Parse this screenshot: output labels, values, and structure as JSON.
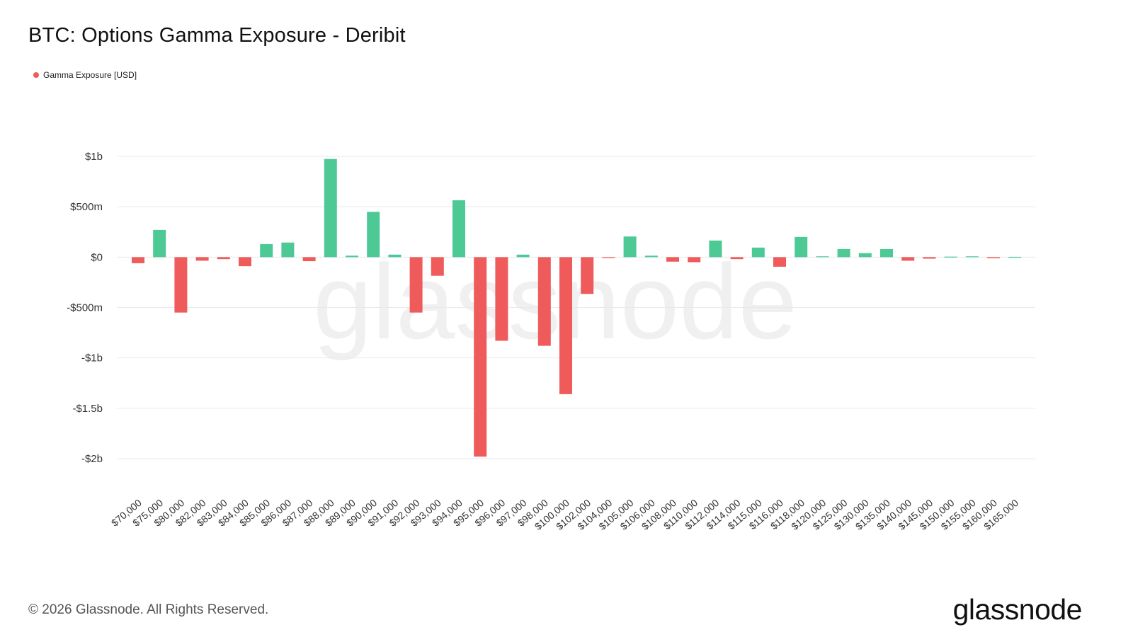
{
  "title": "BTC: Options Gamma Exposure - Deribit",
  "legend": {
    "label": "Gamma Exposure [USD]",
    "color": "#ef5b5b"
  },
  "footer": "© 2026 Glassnode. All Rights Reserved.",
  "logo": "glassnode",
  "watermark": "glassnode",
  "colors": {
    "positive": "#4cc994",
    "negative": "#ef5b5b",
    "grid": "#e9e9e9"
  },
  "chart_data": {
    "type": "bar",
    "ylim": [
      -2000000000,
      1000000000
    ],
    "grid": true,
    "legend_position": "top-left",
    "yticks": [
      {
        "value": 1000000000,
        "label": "$1b"
      },
      {
        "value": 500000000,
        "label": "$500m"
      },
      {
        "value": 0,
        "label": "$0"
      },
      {
        "value": -500000000,
        "label": "-$500m"
      },
      {
        "value": -1000000000,
        "label": "-$1b"
      },
      {
        "value": -1500000000,
        "label": "-$1.5b"
      },
      {
        "value": -2000000000,
        "label": "-$2b"
      }
    ],
    "categories": [
      "$70,000",
      "$75,000",
      "$80,000",
      "$82,000",
      "$83,000",
      "$84,000",
      "$85,000",
      "$86,000",
      "$87,000",
      "$88,000",
      "$89,000",
      "$90,000",
      "$91,000",
      "$92,000",
      "$93,000",
      "$94,000",
      "$95,000",
      "$96,000",
      "$97,000",
      "$98,000",
      "$100,000",
      "$102,000",
      "$104,000",
      "$105,000",
      "$106,000",
      "$108,000",
      "$110,000",
      "$112,000",
      "$114,000",
      "$115,000",
      "$116,000",
      "$118,000",
      "$120,000",
      "$125,000",
      "$130,000",
      "$135,000",
      "$140,000",
      "$145,000",
      "$150,000",
      "$155,000",
      "$160,000",
      "$165,000"
    ],
    "series": [
      {
        "name": "Gamma Exposure [USD]",
        "values": [
          -60000000,
          270000000,
          -550000000,
          -35000000,
          -20000000,
          -90000000,
          130000000,
          145000000,
          -40000000,
          975000000,
          15000000,
          450000000,
          25000000,
          -550000000,
          -185000000,
          565000000,
          -1980000000,
          -830000000,
          25000000,
          -880000000,
          -1360000000,
          -365000000,
          -8000000,
          205000000,
          15000000,
          -45000000,
          -50000000,
          165000000,
          -20000000,
          95000000,
          -95000000,
          200000000,
          8000000,
          80000000,
          40000000,
          80000000,
          -35000000,
          -15000000,
          5000000,
          8000000,
          -10000000,
          3000000
        ]
      }
    ]
  }
}
